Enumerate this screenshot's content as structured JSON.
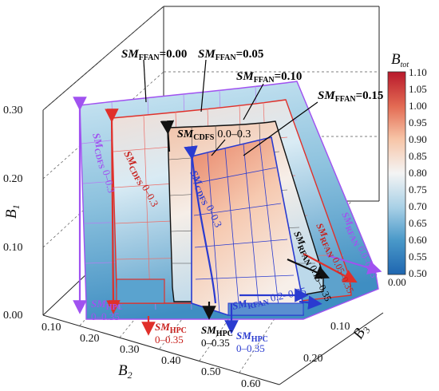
{
  "chart_data": {
    "type": "3d-surface",
    "axes": {
      "x": {
        "label_main": "B",
        "label_sub": "2",
        "ticks": [
          "0.10",
          "0.20",
          "0.30",
          "0.40",
          "0.50",
          "0.60"
        ]
      },
      "y": {
        "label_main": "B",
        "label_sub": "3",
        "ticks": [
          "0.10",
          "0.20"
        ]
      },
      "z": {
        "label_main": "B",
        "label_sub": "1",
        "ticks": [
          "0.00",
          "0.10",
          "0.20",
          "0.30"
        ]
      }
    },
    "colorbar": {
      "title_main": "B",
      "title_sub": "tot",
      "ticks": [
        "1.10",
        "1.05",
        "1.00",
        "0.95",
        "0.90",
        "0.85",
        "0.80",
        "0.75",
        "0.70",
        "0.65",
        "0.60",
        "0.55",
        "0.50"
      ],
      "bottom_label": "0.00",
      "range": [
        0.5,
        1.1
      ]
    },
    "surfaces": [
      {
        "name": "SM_FFAN = 0.00",
        "color": "#a052f0"
      },
      {
        "name": "SM_FFAN = 0.05",
        "color": "#e0302a"
      },
      {
        "name": "SM_FFAN = 0.10",
        "color": "#111111"
      },
      {
        "name": "SM_FFAN = 0.15",
        "color": "#2a3bd0"
      }
    ],
    "annotations": {
      "ffan": [
        {
          "sm": "SM",
          "sub": "FFAN",
          "val": "=0.00"
        },
        {
          "sm": "SM",
          "sub": "FFAN",
          "val": "=0.05"
        },
        {
          "sm": "SM",
          "sub": "FFAN",
          "val": "=0.10"
        },
        {
          "sm": "SM",
          "sub": "FFAN",
          "val": "=0.15"
        }
      ],
      "cdfs_top": {
        "sm": "SM",
        "sub": "CDFS",
        "range": "0.0–0.3"
      },
      "cdfs_purple": {
        "sm": "SM",
        "sub": "CDFS",
        "range": "0–0.3"
      },
      "cdfs_red": {
        "sm": "SM",
        "sub": "CDFS",
        "range": "0–0.3"
      },
      "cdfs_blue": {
        "sm": "SM",
        "sub": "CDFS",
        "range": "0–0.3"
      },
      "hpc_purple": {
        "sm": "SM",
        "sub": "HPC",
        "range": "0–0.35"
      },
      "hpc_red": {
        "sm": "SM",
        "sub": "HPC",
        "range": "0–0.35"
      },
      "hpc_black": {
        "sm": "SM",
        "sub": "HPC",
        "range": "0–0.35"
      },
      "hpc_blue": {
        "sm": "SM",
        "sub": "HPC",
        "range": "0–0.35"
      },
      "rfan_purple": {
        "sm": "SM",
        "sub": "RFAN",
        "range": "0.0–0.35"
      },
      "rfan_red": {
        "sm": "SM",
        "sub": "RFAN",
        "range": "0.05–0.35"
      },
      "rfan_black": {
        "sm": "SM",
        "sub": "RFAN",
        "range": "0.15–0.35"
      },
      "rfan_blue": {
        "sm": "SM",
        "sub": "RFAN",
        "range": "0.2–0.35"
      }
    }
  }
}
